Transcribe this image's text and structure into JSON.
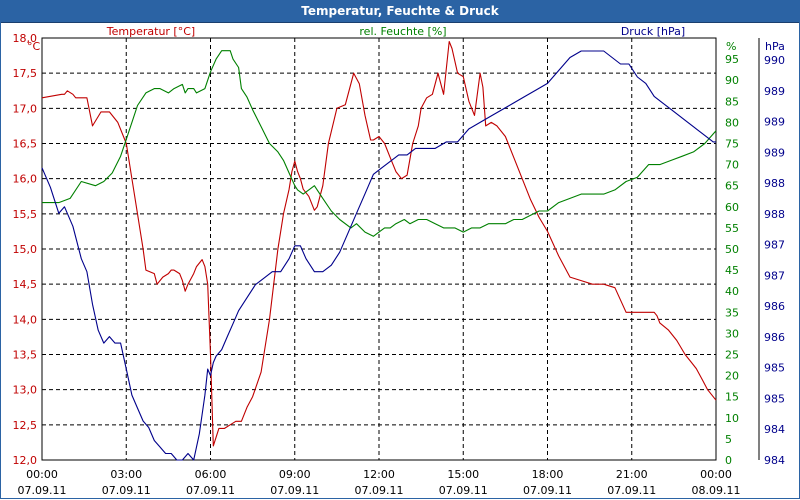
{
  "window": {
    "title": "Temperatur, Feuchte & Druck"
  },
  "chart_data": {
    "type": "line",
    "title": "Temperatur, Feuchte & Druck",
    "x_ticks": [
      {
        "time": "00:00",
        "date": "07.09.11"
      },
      {
        "time": "03:00",
        "date": "07.09.11"
      },
      {
        "time": "06:00",
        "date": "07.09.11"
      },
      {
        "time": "09:00",
        "date": "07.09.11"
      },
      {
        "time": "12:00",
        "date": "07.09.11"
      },
      {
        "time": "15:00",
        "date": "07.09.11"
      },
      {
        "time": "18:00",
        "date": "07.09.11"
      },
      {
        "time": "21:00",
        "date": "07.09.11"
      },
      {
        "time": "00:00",
        "date": "08.09.11"
      }
    ],
    "x_range_hours": [
      0,
      24
    ],
    "grid": true,
    "axes": {
      "temperature": {
        "label": "Temperatur [°C]",
        "unit": "°C",
        "color": "#c00000",
        "ylim": [
          12.0,
          18.0
        ],
        "ticks": [
          "12,0",
          "12,5",
          "13,0",
          "13,5",
          "14,0",
          "14,5",
          "15,0",
          "15,5",
          "16,0",
          "16,5",
          "17,0",
          "17,5",
          "18,0"
        ]
      },
      "humidity": {
        "label": "rel. Feuchte [%]",
        "unit": "%",
        "color": "#008000",
        "ylim": [
          0,
          100
        ],
        "ticks": [
          "0",
          "5",
          "10",
          "15",
          "20",
          "25",
          "30",
          "35",
          "40",
          "45",
          "50",
          "55",
          "60",
          "65",
          "70",
          "75",
          "80",
          "85",
          "90",
          "95"
        ]
      },
      "pressure": {
        "label": "Druck [hPa]",
        "unit": "hPa",
        "color": "#00008b",
        "ylim": [
          984,
          990.5
        ],
        "ticks": [
          "984",
          "984",
          "985",
          "985",
          "986",
          "986",
          "987",
          "987",
          "988",
          "988",
          "989",
          "989",
          "989",
          "990"
        ]
      }
    },
    "series": [
      {
        "name": "Temperatur",
        "axis": "temperature",
        "color": "#c00000",
        "x": [
          0,
          0.7,
          0.8,
          0.9,
          1.1,
          1.2,
          1.6,
          1.8,
          2.1,
          2.2,
          2.4,
          2.7,
          3.0,
          3.2,
          3.4,
          3.5,
          3.6,
          3.7,
          4.0,
          4.1,
          4.3,
          4.5,
          4.6,
          4.7,
          4.9,
          5.0,
          5.1,
          5.2,
          5.4,
          5.5,
          5.7,
          5.8,
          5.9,
          6.0,
          6.1,
          6.3,
          6.5,
          6.7,
          6.9,
          7.1,
          7.3,
          7.5,
          7.8,
          8.1,
          8.4,
          8.6,
          8.8,
          8.9,
          9.0,
          9.1,
          9.2,
          9.3,
          9.5,
          9.7,
          9.8,
          10.0,
          10.2,
          10.5,
          10.8,
          11.1,
          11.3,
          11.5,
          11.7,
          11.8,
          12.0,
          12.2,
          12.4,
          12.6,
          12.8,
          13.0,
          13.2,
          13.4,
          13.5,
          13.7,
          13.9,
          14.1,
          14.3,
          14.5,
          14.6,
          14.8,
          15.0,
          15.2,
          15.4,
          15.6,
          15.7,
          15.8,
          16.0,
          16.2,
          16.5,
          16.8,
          17.1,
          17.4,
          17.7,
          18.0,
          18.4,
          18.8,
          19.2,
          19.6,
          20.0,
          20.4,
          20.8,
          21.2,
          21.5,
          21.7,
          21.8,
          21.9,
          22.0,
          22.3,
          22.6,
          22.9,
          23.1,
          23.3,
          23.5,
          23.7,
          23.8,
          24.0
        ],
        "values": [
          17.15,
          17.2,
          17.2,
          17.25,
          17.2,
          17.15,
          17.15,
          16.75,
          16.95,
          16.95,
          16.95,
          16.8,
          16.5,
          16.0,
          15.5,
          15.25,
          15.0,
          14.7,
          14.65,
          14.5,
          14.6,
          14.65,
          14.7,
          14.7,
          14.65,
          14.55,
          14.4,
          14.5,
          14.65,
          14.75,
          14.85,
          14.75,
          14.5,
          13.5,
          12.2,
          12.45,
          12.45,
          12.5,
          12.55,
          12.55,
          12.75,
          12.9,
          13.25,
          14.0,
          15.0,
          15.5,
          15.85,
          16.1,
          16.25,
          16.1,
          16.0,
          15.85,
          15.75,
          15.55,
          15.6,
          15.9,
          16.5,
          17.0,
          17.05,
          17.5,
          17.35,
          16.9,
          16.55,
          16.55,
          16.6,
          16.5,
          16.3,
          16.1,
          16.0,
          16.05,
          16.5,
          16.75,
          17.0,
          17.15,
          17.2,
          17.5,
          17.2,
          17.95,
          17.85,
          17.5,
          17.45,
          17.1,
          16.9,
          17.5,
          17.3,
          16.75,
          16.8,
          16.75,
          16.6,
          16.3,
          16.0,
          15.7,
          15.45,
          15.25,
          14.9,
          14.6,
          14.55,
          14.5,
          14.5,
          14.45,
          14.1,
          14.1,
          14.1,
          14.1,
          14.1,
          14.05,
          13.95,
          13.85,
          13.7,
          13.5,
          13.4,
          13.3,
          13.15,
          13.0,
          12.95,
          12.85
        ]
      },
      {
        "name": "rel. Feuchte",
        "axis": "humidity",
        "color": "#008000",
        "x": [
          0,
          0.6,
          1.0,
          1.4,
          1.9,
          2.2,
          2.5,
          2.8,
          3.0,
          3.2,
          3.4,
          3.7,
          4.0,
          4.2,
          4.5,
          4.7,
          5.0,
          5.1,
          5.2,
          5.4,
          5.5,
          5.8,
          6.0,
          6.2,
          6.4,
          6.6,
          6.7,
          6.8,
          7.0,
          7.1,
          7.3,
          7.5,
          7.8,
          8.1,
          8.4,
          8.6,
          8.8,
          9.0,
          9.1,
          9.3,
          9.5,
          9.7,
          10.0,
          10.3,
          10.6,
          11.0,
          11.2,
          11.5,
          11.8,
          12.0,
          12.2,
          12.4,
          12.6,
          12.9,
          13.1,
          13.4,
          13.7,
          14.0,
          14.3,
          14.5,
          14.7,
          15.0,
          15.3,
          15.6,
          15.9,
          16.2,
          16.5,
          16.8,
          17.1,
          17.4,
          17.7,
          18.0,
          18.4,
          18.8,
          19.2,
          19.6,
          20.0,
          20.4,
          20.8,
          21.2,
          21.6,
          22.0,
          22.4,
          22.8,
          23.2,
          23.6,
          24.0
        ],
        "values": [
          61,
          61,
          62,
          66,
          65,
          66,
          68,
          72,
          76,
          80,
          84,
          87,
          88,
          88,
          87,
          88,
          89,
          87,
          88,
          88,
          87,
          88,
          92,
          95,
          97,
          97,
          97,
          95,
          93,
          88,
          86,
          83,
          79,
          75,
          73,
          71,
          68,
          65,
          64,
          63,
          64,
          65,
          62,
          59,
          57,
          55,
          56,
          54,
          53,
          54,
          55,
          55,
          56,
          57,
          56,
          57,
          57,
          56,
          55,
          55,
          55,
          54,
          55,
          55,
          56,
          56,
          56,
          57,
          57,
          58,
          59,
          59,
          61,
          62,
          63,
          63,
          63,
          64,
          66,
          67,
          70,
          70,
          71,
          72,
          73,
          75,
          78
        ]
      },
      {
        "name": "Druck",
        "axis": "pressure",
        "color": "#00008b",
        "x": [
          0,
          0.3,
          0.6,
          0.8,
          1.1,
          1.4,
          1.6,
          1.8,
          2.0,
          2.2,
          2.4,
          2.6,
          2.8,
          3.0,
          3.2,
          3.4,
          3.6,
          3.8,
          4.0,
          4.2,
          4.4,
          4.6,
          4.8,
          5.0,
          5.2,
          5.4,
          5.5,
          5.6,
          5.7,
          5.8,
          5.9,
          6.0,
          6.1,
          6.2,
          6.4,
          6.6,
          6.8,
          7.0,
          7.3,
          7.6,
          7.9,
          8.2,
          8.5,
          8.8,
          9.0,
          9.2,
          9.4,
          9.7,
          10.0,
          10.3,
          10.6,
          10.9,
          11.2,
          11.5,
          11.8,
          12.1,
          12.4,
          12.7,
          13.0,
          13.3,
          13.6,
          14.0,
          14.4,
          14.8,
          15.2,
          15.6,
          16.0,
          16.4,
          16.8,
          17.2,
          17.6,
          18.0,
          18.4,
          18.8,
          19.2,
          19.6,
          20.0,
          20.3,
          20.6,
          20.9,
          21.2,
          21.5,
          21.8,
          22.1,
          22.4,
          22.7,
          23.0,
          23.3,
          23.6,
          23.9,
          24.0
        ],
        "values": [
          988.5,
          988.2,
          987.8,
          987.9,
          987.6,
          987.1,
          986.9,
          986.4,
          986.0,
          985.8,
          985.9,
          985.8,
          985.8,
          985.4,
          985.0,
          984.8,
          984.6,
          984.5,
          984.3,
          984.2,
          984.1,
          984.1,
          984.0,
          984.0,
          984.1,
          984.0,
          984.2,
          984.4,
          984.7,
          985.0,
          985.4,
          985.3,
          985.5,
          985.6,
          985.7,
          985.9,
          986.1,
          986.3,
          986.5,
          986.7,
          986.8,
          986.9,
          986.9,
          987.1,
          987.3,
          987.3,
          987.1,
          986.9,
          986.9,
          987.0,
          987.2,
          987.5,
          987.8,
          988.1,
          988.4,
          988.5,
          988.6,
          988.7,
          988.7,
          988.8,
          988.8,
          988.8,
          988.9,
          988.9,
          989.1,
          989.2,
          989.3,
          989.4,
          989.5,
          989.6,
          989.7,
          989.8,
          990.0,
          990.2,
          990.3,
          990.3,
          990.3,
          990.2,
          990.1,
          990.1,
          989.9,
          989.8,
          989.6,
          989.5,
          989.4,
          989.3,
          989.2,
          989.1,
          989.0,
          988.9,
          988.9
        ]
      }
    ]
  }
}
